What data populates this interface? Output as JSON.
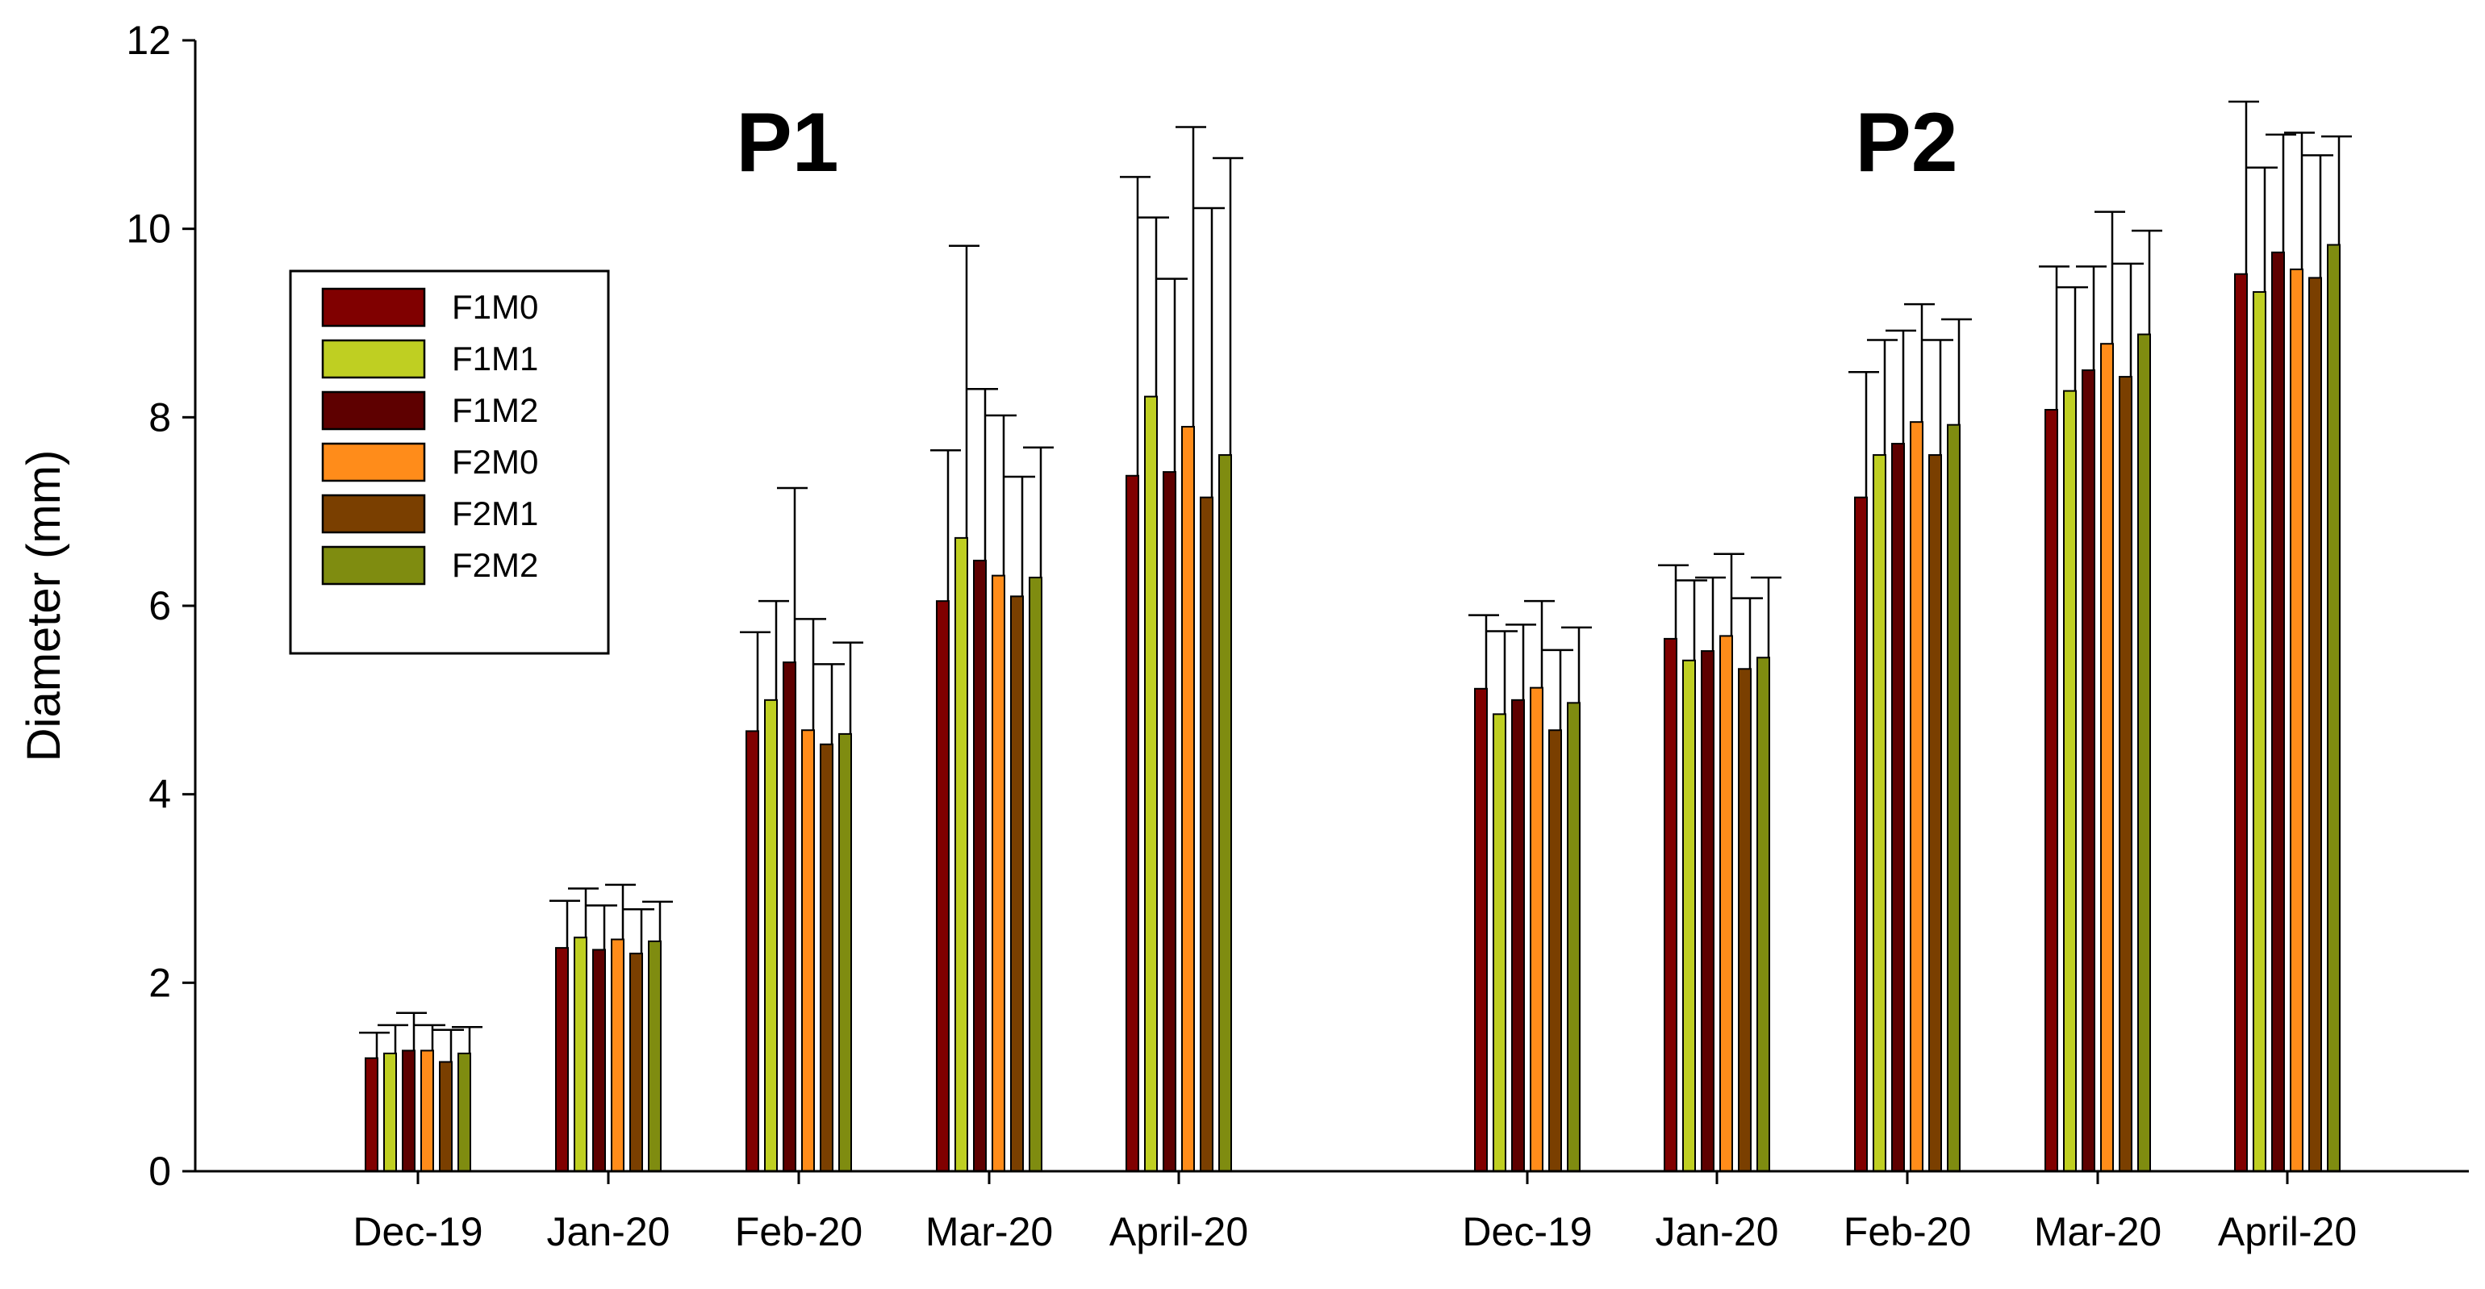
{
  "chart_data": {
    "type": "bar",
    "title": "",
    "xlabel": "",
    "ylabel": "Diameter (mm)",
    "ylim": [
      0,
      12
    ],
    "yticks": [
      "0",
      "2",
      "4",
      "6",
      "8",
      "10",
      "12"
    ],
    "grid": false,
    "legend_position": "left-upper",
    "colors": {
      "F1M0": "#800000",
      "F1M1": "#bfcf22",
      "F1M2": "#5e0000",
      "F2M0": "#ff8c1a",
      "F2M1": "#7a3f00",
      "F2M2": "#7f8c10"
    },
    "series_names": [
      "F1M0",
      "F1M1",
      "F1M2",
      "F2M0",
      "F2M1",
      "F2M2"
    ],
    "groups": [
      {
        "panel": "P1",
        "categories": [
          "Dec-19",
          "Jan-20",
          "Feb-20",
          "Mar-20",
          "April-20"
        ],
        "series": [
          {
            "name": "F1M0",
            "values": [
              1.2,
              2.37,
              4.67,
              6.05,
              7.38
            ],
            "errors": [
              0.27,
              0.5,
              1.05,
              1.6,
              3.17
            ]
          },
          {
            "name": "F1M1",
            "values": [
              1.25,
              2.48,
              5.0,
              6.72,
              8.22
            ],
            "errors": [
              0.3,
              0.52,
              1.05,
              3.1,
              1.9
            ]
          },
          {
            "name": "F1M2",
            "values": [
              1.28,
              2.35,
              5.4,
              6.48,
              7.42
            ],
            "errors": [
              0.4,
              0.47,
              1.85,
              1.82,
              2.05
            ]
          },
          {
            "name": "F2M0",
            "values": [
              1.28,
              2.46,
              4.68,
              6.32,
              7.9
            ],
            "errors": [
              0.27,
              0.58,
              1.18,
              1.7,
              3.18
            ]
          },
          {
            "name": "F2M1",
            "values": [
              1.16,
              2.31,
              4.53,
              6.1,
              7.15
            ],
            "errors": [
              0.34,
              0.47,
              0.85,
              1.27,
              3.07
            ]
          },
          {
            "name": "F2M2",
            "values": [
              1.25,
              2.44,
              4.64,
              6.3,
              7.6
            ],
            "errors": [
              0.28,
              0.42,
              0.97,
              1.38,
              3.15
            ]
          }
        ]
      },
      {
        "panel": "P2",
        "categories": [
          "Dec-19",
          "Jan-20",
          "Feb-20",
          "Mar-20",
          "April-20"
        ],
        "series": [
          {
            "name": "F1M0",
            "values": [
              5.12,
              5.65,
              7.15,
              8.08,
              9.52
            ],
            "errors": [
              0.78,
              0.78,
              1.33,
              1.52,
              1.83
            ]
          },
          {
            "name": "F1M1",
            "values": [
              4.85,
              5.42,
              7.6,
              8.28,
              9.33
            ],
            "errors": [
              0.88,
              0.85,
              1.22,
              1.1,
              1.32
            ]
          },
          {
            "name": "F1M2",
            "values": [
              5.0,
              5.52,
              7.72,
              8.5,
              9.75
            ],
            "errors": [
              0.8,
              0.78,
              1.2,
              1.1,
              1.25
            ]
          },
          {
            "name": "F2M0",
            "values": [
              5.13,
              5.68,
              7.95,
              8.78,
              9.57
            ],
            "errors": [
              0.92,
              0.87,
              1.25,
              1.4,
              1.45
            ]
          },
          {
            "name": "F2M1",
            "values": [
              4.68,
              5.33,
              7.6,
              8.43,
              9.48
            ],
            "errors": [
              0.85,
              0.75,
              1.22,
              1.2,
              1.3
            ]
          },
          {
            "name": "F2M2",
            "values": [
              4.97,
              5.45,
              7.92,
              8.88,
              9.83
            ],
            "errors": [
              0.8,
              0.85,
              1.12,
              1.1,
              1.15
            ]
          }
        ]
      }
    ]
  }
}
